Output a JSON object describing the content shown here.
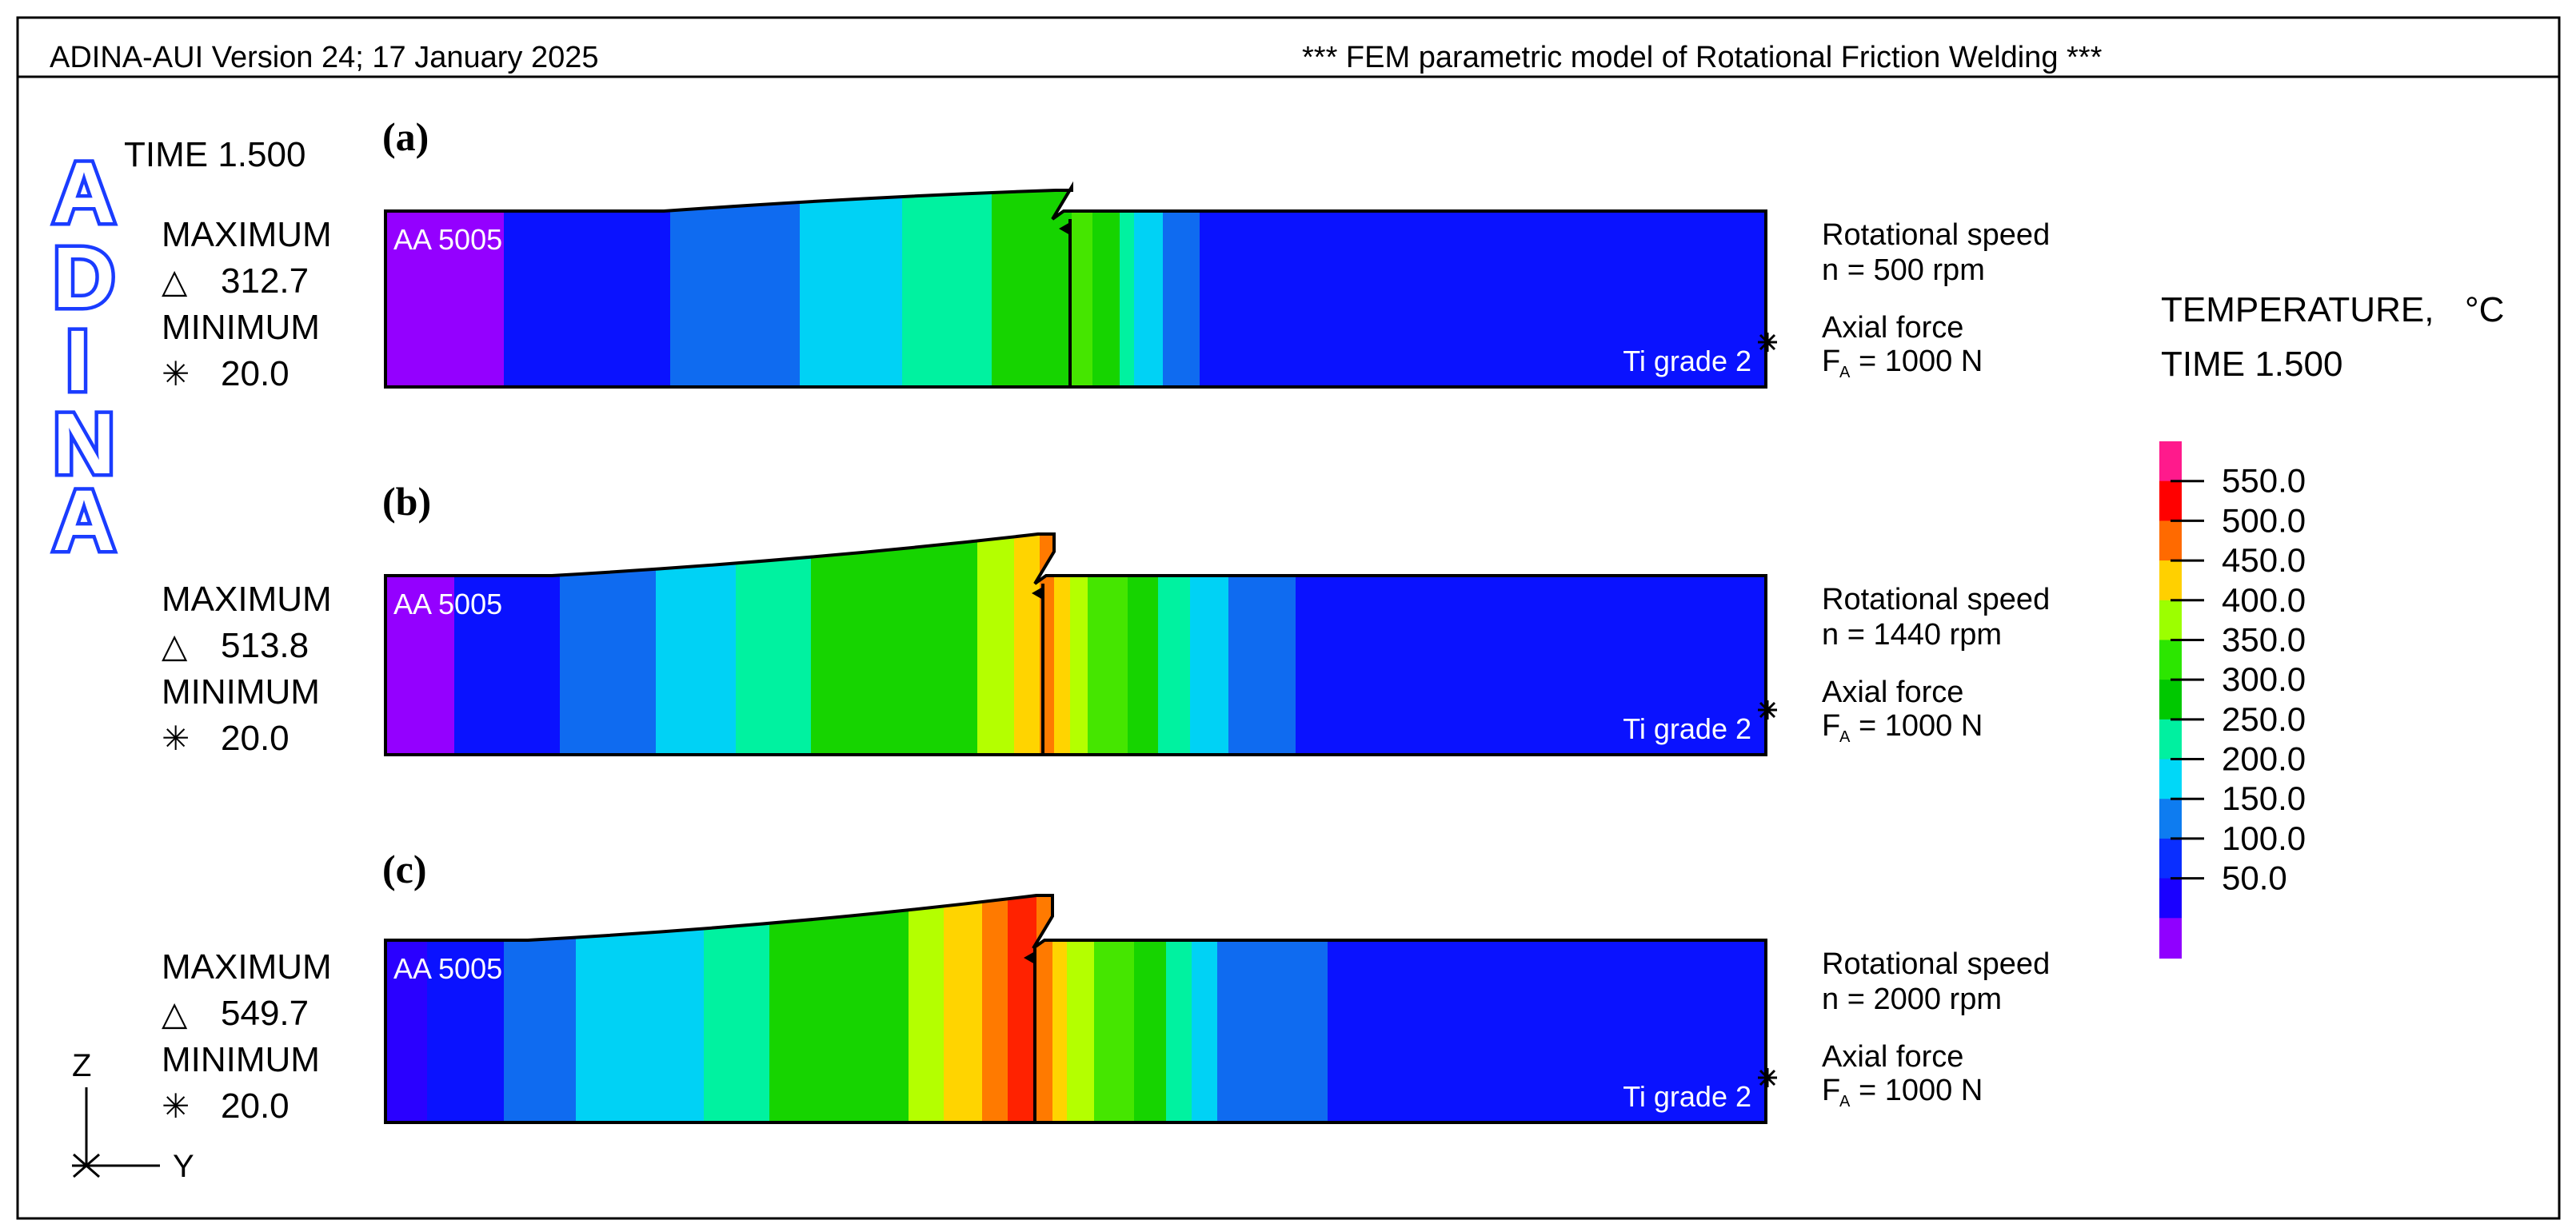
{
  "header": {
    "software": "ADINA-AUI Version 24; 17 January 2025",
    "title": "*** FEM parametric model of Rotational Friction Welding ***"
  },
  "logo": {
    "letters": [
      "A",
      "D",
      "I",
      "N",
      "A"
    ],
    "color": "#1a3cff"
  },
  "time_top": "TIME 1.500",
  "axes": {
    "z": "Z",
    "y": "Y"
  },
  "colors": {
    "c50": "#6a00ff",
    "c100": "#0a12ff",
    "c150": "#0f6bf0",
    "c200": "#00d2f5",
    "c250": "#00f2a0",
    "c300": "#16d400",
    "c350": "#45e600",
    "c400": "#b4ff00",
    "c450": "#ffd400",
    "c500": "#ff7a00",
    "c550": "#ff2200",
    "ctop": "#ff007e",
    "c25": "#9400ff",
    "c75": "#2a00ff"
  },
  "panels": [
    {
      "label": "(a)",
      "max_label": "MAXIMUM",
      "max_value": "312.7",
      "min_label": "MINIMUM",
      "min_value": "20.0",
      "left_material": "AA 5005",
      "right_material": "Ti grade 2",
      "speed_title": "Rotational speed",
      "speed_value": "n = 500 rpm",
      "force_title": "Axial force",
      "force_symbol": "F",
      "force_sub": "A",
      "force_value": "= 1000 N",
      "triangle": "△",
      "star": "✳"
    },
    {
      "label": "(b)",
      "max_label": "MAXIMUM",
      "max_value": "513.8",
      "min_label": "MINIMUM",
      "min_value": "20.0",
      "left_material": "AA 5005",
      "right_material": "Ti grade 2",
      "speed_title": "Rotational speed",
      "speed_value": "n = 1440 rpm",
      "force_title": "Axial force",
      "force_symbol": "F",
      "force_sub": "A",
      "force_value": "= 1000 N",
      "triangle": "△",
      "star": "✳"
    },
    {
      "label": "(c)",
      "max_label": "MAXIMUM",
      "max_value": "549.7",
      "min_label": "MINIMUM",
      "min_value": "20.0",
      "left_material": "AA 5005",
      "right_material": "Ti grade 2",
      "speed_title": "Rotational speed",
      "speed_value": "n = 2000 rpm",
      "force_title": "Axial force",
      "force_symbol": "F",
      "force_sub": "A",
      "force_value": "= 1000 N",
      "triangle": "△",
      "star": "✳"
    }
  ],
  "legend": {
    "title": "TEMPERATURE,",
    "unit": "°C",
    "time": "TIME 1.500",
    "ticks": [
      "550.0",
      "500.0",
      "450.0",
      "400.0",
      "350.0",
      "300.0",
      "250.0",
      "200.0",
      "150.0",
      "100.0",
      "50.0"
    ],
    "bands": [
      "#ff1a8c",
      "#ff0000",
      "#ff6a00",
      "#ffd000",
      "#9cff00",
      "#2ce600",
      "#00c800",
      "#00f0a0",
      "#00d8f8",
      "#0e7cf0",
      "#0a2eff",
      "#1a00ff",
      "#9000ff"
    ]
  }
}
